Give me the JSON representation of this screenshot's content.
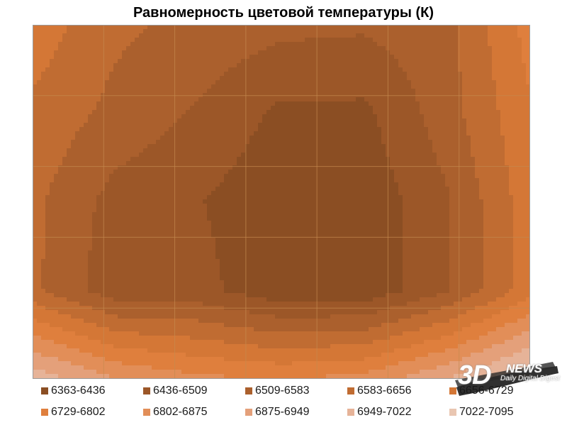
{
  "chart_data": {
    "type": "heatmap",
    "title": "Равномерность цветовой температуры (К)",
    "legend_placement": "bottom",
    "grid": true,
    "rows": 5,
    "cols": 7,
    "legend": [
      {
        "label": "6363-6436",
        "color": "#8b4e23"
      },
      {
        "label": "6436-6509",
        "color": "#9c5728"
      },
      {
        "label": "6509-6583",
        "color": "#ab602d"
      },
      {
        "label": "6583-6656",
        "color": "#c06c32"
      },
      {
        "label": "6656-6729",
        "color": "#d47736"
      },
      {
        "label": "6729-6802",
        "color": "#df7f3d"
      },
      {
        "label": "6802-6875",
        "color": "#e28e58"
      },
      {
        "label": "6875-6949",
        "color": "#e4a07a"
      },
      {
        "label": "6949-7022",
        "color": "#e6b398"
      },
      {
        "label": "7022-7095",
        "color": "#e9c6b1"
      }
    ],
    "values": [
      [
        6700,
        6600,
        6560,
        6530,
        6520,
        6560,
        6760
      ],
      [
        6640,
        6560,
        6500,
        6420,
        6420,
        6550,
        6720
      ],
      [
        6600,
        6480,
        6440,
        6380,
        6380,
        6500,
        6700
      ],
      [
        6600,
        6460,
        6460,
        6380,
        6380,
        6500,
        6700
      ],
      [
        7000,
        6880,
        6820,
        6800,
        6830,
        6950,
        7090
      ]
    ]
  },
  "watermark": {
    "big": "3D",
    "news": "NEWS",
    "sub": "Daily Digital Digest"
  }
}
